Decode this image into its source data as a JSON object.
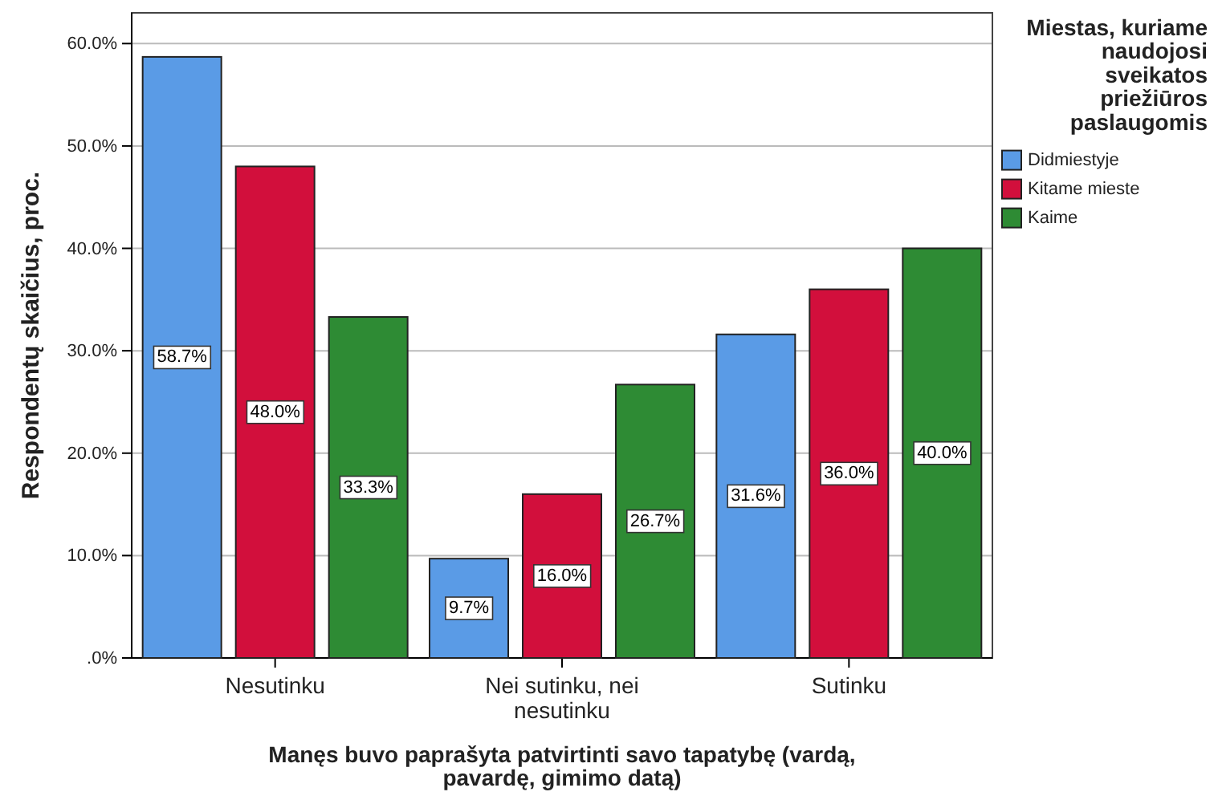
{
  "chart_data": {
    "type": "bar",
    "xlabel": "Manęs buvo paprašyta patvirtinti savo tapatybę (vardą, pavardę, gimimo datą)",
    "ylabel": "Respondentų skaičius, proc.",
    "legend_title": "Miestas, kuriame naudojosi sveikatos priežiūros paslaugomis",
    "categories": [
      "Nesutinku",
      "Nei sutinku, nei nesutinku",
      "Sutinku"
    ],
    "series": [
      {
        "name": "Didmiestyje",
        "color": "#5a9be6",
        "values": [
          58.7,
          9.7,
          31.6
        ],
        "value_labels": [
          "58.7%",
          "9.7%",
          "31.6%"
        ]
      },
      {
        "name": "Kitame mieste",
        "color": "#d20f3c",
        "values": [
          48.0,
          16.0,
          36.0
        ],
        "value_labels": [
          "48.0%",
          "16.0%",
          "36.0%"
        ]
      },
      {
        "name": "Kaime",
        "color": "#2e8b34",
        "values": [
          33.3,
          26.7,
          40.0
        ],
        "value_labels": [
          "33.3%",
          "26.7%",
          "40.0%"
        ]
      }
    ],
    "ylim": [
      0,
      63
    ],
    "yticks": [
      {
        "value": 0,
        "label": ".0%"
      },
      {
        "value": 10,
        "label": "10.0%"
      },
      {
        "value": 20,
        "label": "20.0%"
      },
      {
        "value": 30,
        "label": "30.0%"
      },
      {
        "value": 40,
        "label": "40.0%"
      },
      {
        "value": 50,
        "label": "50.0%"
      },
      {
        "value": 60,
        "label": "60.0%"
      }
    ],
    "grid": "y",
    "legend": "right"
  }
}
